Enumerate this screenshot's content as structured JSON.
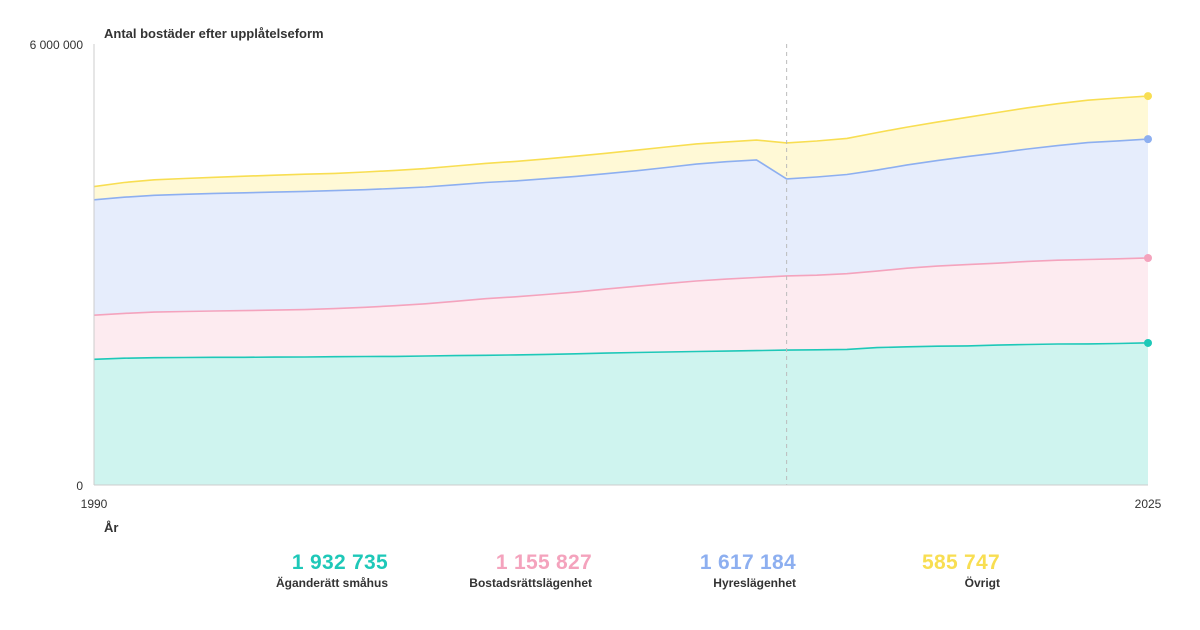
{
  "chart_data": {
    "type": "area",
    "stacked": true,
    "ylabel": "Antal bostäder efter upplåtelseform",
    "xlabel": "År",
    "x_ticks": [
      "1990",
      "2025"
    ],
    "y_ticks": [
      "6 000 000",
      "0"
    ],
    "ylim": [
      0,
      6000000
    ],
    "xlim": [
      1990,
      2025
    ],
    "x": [
      1990,
      1991,
      1992,
      1993,
      1994,
      1995,
      1996,
      1997,
      1998,
      1999,
      2000,
      2001,
      2002,
      2003,
      2004,
      2005,
      2006,
      2007,
      2008,
      2009,
      2010,
      2011,
      2012,
      2013,
      2014,
      2015,
      2016,
      2017,
      2018,
      2019,
      2020,
      2021,
      2022,
      2023,
      2024,
      2025
    ],
    "marker_year": 2013,
    "series": [
      {
        "name": "Äganderätt småhus",
        "color": "#1ec8b8",
        "fill": "#cff4ef",
        "values": [
          1710000,
          1725000,
          1732000,
          1735000,
          1737000,
          1738000,
          1740000,
          1742000,
          1745000,
          1748000,
          1750000,
          1755000,
          1760000,
          1765000,
          1770000,
          1777000,
          1785000,
          1795000,
          1803000,
          1810000,
          1816000,
          1822000,
          1828000,
          1835000,
          1840000,
          1845000,
          1870000,
          1880000,
          1888000,
          1893000,
          1903000,
          1912000,
          1918000,
          1920000,
          1925000,
          1932735
        ]
      },
      {
        "name": "Bostadsrättslägenhet",
        "color": "#f4a3bd",
        "fill": "#fdebf0",
        "values": [
          600000,
          610000,
          620000,
          625000,
          630000,
          635000,
          640000,
          645000,
          655000,
          670000,
          690000,
          710000,
          740000,
          770000,
          790000,
          815000,
          840000,
          870000,
          900000,
          930000,
          960000,
          980000,
          995000,
          1010000,
          1015000,
          1030000,
          1040000,
          1070000,
          1090000,
          1105000,
          1115000,
          1130000,
          1140000,
          1148000,
          1152000,
          1155827
        ]
      },
      {
        "name": "Hyreslägenhet",
        "color": "#8daff0",
        "fill": "#e6edfc",
        "values": [
          1570000,
          1580000,
          1590000,
          1595000,
          1600000,
          1603000,
          1605000,
          1607000,
          1605000,
          1600000,
          1595000,
          1590000,
          1585000,
          1580000,
          1578000,
          1575000,
          1573000,
          1570000,
          1572000,
          1580000,
          1590000,
          1596000,
          1600000,
          1320000,
          1335000,
          1350000,
          1375000,
          1405000,
          1435000,
          1470000,
          1500000,
          1530000,
          1560000,
          1590000,
          1605000,
          1617184
        ]
      },
      {
        "name": "Övrigt",
        "color": "#f8de52",
        "fill": "#fff9d6",
        "values": [
          180000,
          200000,
          210000,
          215000,
          220000,
          225000,
          230000,
          235000,
          235000,
          240000,
          245000,
          250000,
          255000,
          260000,
          265000,
          270000,
          275000,
          278000,
          280000,
          278000,
          275000,
          270000,
          270000,
          490000,
          490000,
          490000,
          510000,
          515000,
          525000,
          535000,
          550000,
          560000,
          570000,
          578000,
          583000,
          585747
        ]
      }
    ]
  },
  "legend": [
    {
      "value": "1 932 735",
      "label": "Äganderätt småhus",
      "color": "#1ec8b8"
    },
    {
      "value": "1 155 827",
      "label": "Bostadsrättslägenhet",
      "color": "#f4a3bd"
    },
    {
      "value": "1 617 184",
      "label": "Hyreslägenhet",
      "color": "#8daff0"
    },
    {
      "value": "585 747",
      "label": "Övrigt",
      "color": "#f8de52"
    }
  ]
}
